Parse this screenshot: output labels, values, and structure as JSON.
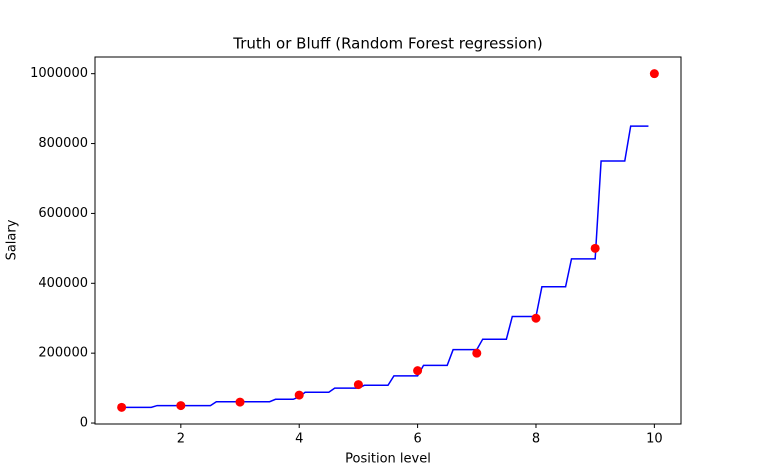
{
  "chart_data": {
    "type": "scatter",
    "title": "Truth or Bluff (Random Forest regression)",
    "x_label": "Position level",
    "y_label": "Salary",
    "xlim": [
      0.55,
      10.45
    ],
    "ylim": [
      -2750,
      1047750
    ],
    "xticks": [
      2,
      4,
      6,
      8,
      10
    ],
    "yticks": [
      0,
      200000,
      400000,
      600000,
      800000,
      1000000
    ],
    "series": [
      {
        "type": "scatter",
        "color": "#ff0000",
        "x": [
          1,
          2,
          3,
          4,
          5,
          6,
          7,
          8,
          9,
          10
        ],
        "values": [
          45000,
          50000,
          60000,
          80000,
          110000,
          150000,
          200000,
          300000,
          500000,
          1000000
        ]
      },
      {
        "type": "line",
        "color": "#0000ff",
        "x": [
          1.0,
          1.5,
          1.6,
          2.5,
          2.6,
          3.5,
          3.6,
          3.9,
          4.0,
          4.0,
          4.1,
          4.5,
          4.6,
          5.0,
          5.1,
          5.5,
          5.6,
          6.0,
          6.1,
          6.5,
          6.6,
          7.0,
          7.1,
          7.5,
          7.6,
          8.0,
          8.1,
          8.5,
          8.6,
          9.0,
          9.1,
          9.5,
          9.6,
          9.9
        ],
        "values": [
          45000,
          45000,
          50000,
          50000,
          61000,
          61000,
          68000,
          68000,
          75000,
          75000,
          88000,
          88000,
          100000,
          100000,
          108000,
          108000,
          135000,
          135000,
          165000,
          165000,
          210000,
          210000,
          240000,
          240000,
          305000,
          305000,
          390000,
          390000,
          470000,
          470000,
          750000,
          750000,
          850000,
          850000
        ]
      }
    ]
  }
}
